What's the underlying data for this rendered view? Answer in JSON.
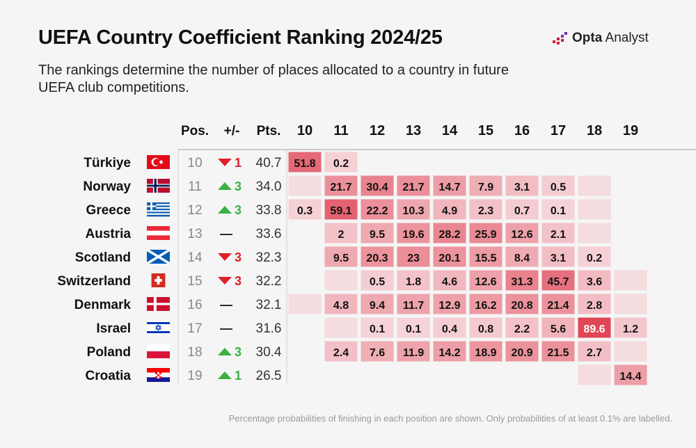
{
  "header": {
    "title": "UEFA Country Coefficient Ranking 2024/25",
    "subtitle": "The rankings determine the number of places allocated to a country in future UEFA club competitions.",
    "brand_bold": "Opta",
    "brand_light": "Analyst"
  },
  "colors": {
    "background": "#f5f5f5",
    "up": "#3cb043",
    "down": "#e0202a",
    "flat": "#222222",
    "cell_low": "#f6d8dc",
    "cell_high": "#e04656",
    "cell_empty": "#f4dcdf"
  },
  "chart_data": {
    "type": "table",
    "title": "UEFA Country Coefficient Ranking 2024/25",
    "columns": {
      "pos": "Pos.",
      "change": "+/-",
      "pts": "Pts."
    },
    "positions": [
      "10",
      "11",
      "12",
      "13",
      "14",
      "15",
      "16",
      "17",
      "18",
      "19"
    ],
    "flat_symbol": "—",
    "rows": [
      {
        "country": "Türkiye",
        "flag": "turkey-flag",
        "pos": "10",
        "dir": "down",
        "change": "1",
        "pts": "40.7",
        "probs": [
          "51.8",
          "0.2",
          null,
          null,
          null,
          null,
          null,
          null,
          null,
          null
        ],
        "empty": []
      },
      {
        "country": "Norway",
        "flag": "norway-flag",
        "pos": "11",
        "dir": "up",
        "change": "3",
        "pts": "34.0",
        "probs": [
          null,
          "21.7",
          "30.4",
          "21.7",
          "14.7",
          "7.9",
          "3.1",
          "0.5",
          null,
          null
        ],
        "empty": [
          0,
          8
        ]
      },
      {
        "country": "Greece",
        "flag": "greece-flag",
        "pos": "12",
        "dir": "up",
        "change": "3",
        "pts": "33.8",
        "probs": [
          "0.3",
          "59.1",
          "22.2",
          "10.3",
          "4.9",
          "2.3",
          "0.7",
          "0.1",
          null,
          null
        ],
        "empty": [
          8
        ]
      },
      {
        "country": "Austria",
        "flag": "austria-flag",
        "pos": "13",
        "dir": "flat",
        "change": "",
        "pts": "33.6",
        "probs": [
          null,
          "2",
          "9.5",
          "19.6",
          "28.2",
          "25.9",
          "12.6",
          "2.1",
          null,
          null
        ],
        "empty": [
          8
        ]
      },
      {
        "country": "Scotland",
        "flag": "scotland-flag",
        "pos": "14",
        "dir": "down",
        "change": "3",
        "pts": "32.3",
        "probs": [
          null,
          "9.5",
          "20.3",
          "23",
          "20.1",
          "15.5",
          "8.4",
          "3.1",
          "0.2",
          null
        ],
        "empty": []
      },
      {
        "country": "Switzerland",
        "flag": "switzerland-flag",
        "pos": "15",
        "dir": "down",
        "change": "3",
        "pts": "32.2",
        "probs": [
          null,
          null,
          "0.5",
          "1.8",
          "4.6",
          "12.6",
          "31.3",
          "45.7",
          "3.6",
          null
        ],
        "empty": [
          1,
          9
        ]
      },
      {
        "country": "Denmark",
        "flag": "denmark-flag",
        "pos": "16",
        "dir": "flat",
        "change": "",
        "pts": "32.1",
        "probs": [
          null,
          "4.8",
          "9.4",
          "11.7",
          "12.9",
          "16.2",
          "20.8",
          "21.4",
          "2.8",
          null
        ],
        "empty": [
          0,
          9
        ]
      },
      {
        "country": "Israel",
        "flag": "israel-flag",
        "pos": "17",
        "dir": "flat",
        "change": "",
        "pts": "31.6",
        "probs": [
          null,
          null,
          "0.1",
          "0.1",
          "0.4",
          "0.8",
          "2.2",
          "5.6",
          "89.6",
          "1.2"
        ],
        "empty": [
          1
        ]
      },
      {
        "country": "Poland",
        "flag": "poland-flag",
        "pos": "18",
        "dir": "up",
        "change": "3",
        "pts": "30.4",
        "probs": [
          null,
          "2.4",
          "7.6",
          "11.9",
          "14.2",
          "18.9",
          "20.9",
          "21.5",
          "2.7",
          null
        ],
        "empty": [
          9
        ]
      },
      {
        "country": "Croatia",
        "flag": "croatia-flag",
        "pos": "19",
        "dir": "up",
        "change": "1",
        "pts": "26.5",
        "probs": [
          null,
          null,
          null,
          null,
          null,
          null,
          null,
          null,
          null,
          "14.4"
        ],
        "empty": [
          8
        ]
      }
    ]
  },
  "footnote": "Percentage probabilities of finishing in each position are shown. Only probabilities of at least 0.1% are labelled."
}
